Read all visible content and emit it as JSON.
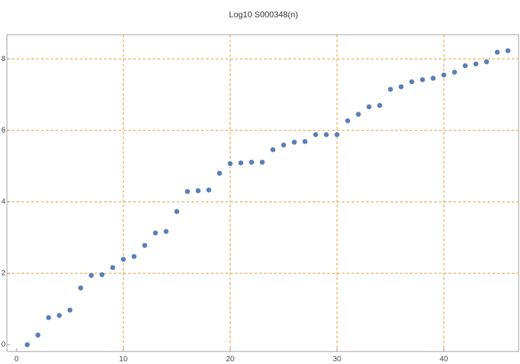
{
  "chart_data": {
    "type": "scatter",
    "title": "Log10 S000348(n)",
    "x": [
      1,
      2,
      3,
      4,
      5,
      6,
      7,
      8,
      9,
      10,
      11,
      12,
      13,
      14,
      15,
      16,
      17,
      18,
      19,
      20,
      21,
      22,
      23,
      24,
      25,
      26,
      27,
      28,
      29,
      30,
      31,
      32,
      33,
      34,
      35,
      36,
      37,
      38,
      39,
      40,
      41,
      42,
      43,
      44,
      45,
      46
    ],
    "series": [
      {
        "color": "#5b7fb5",
        "values": [
          0,
          0.27,
          0.76,
          0.82,
          0.97,
          1.59,
          1.94,
          1.96,
          2.16,
          2.39,
          2.47,
          2.78,
          3.13,
          3.17,
          3.73,
          4.29,
          4.31,
          4.33,
          4.8,
          5.07,
          5.09,
          5.11,
          5.11,
          5.46,
          5.59,
          5.67,
          5.69,
          5.88,
          5.88,
          5.88,
          6.27,
          6.45,
          6.66,
          6.7,
          7.15,
          7.22,
          7.36,
          7.42,
          7.46,
          7.55,
          7.63,
          7.81,
          7.86,
          7.92,
          8.19,
          8.23
        ]
      }
    ],
    "xlim": [
      -0.9,
      47
    ],
    "ylim": [
      -0.19,
      8.68
    ],
    "xticks": [
      0,
      10,
      20,
      30,
      40
    ],
    "yticks": [
      0,
      2,
      4,
      6,
      8
    ],
    "grid": true,
    "grid_color": "#e8952b"
  }
}
